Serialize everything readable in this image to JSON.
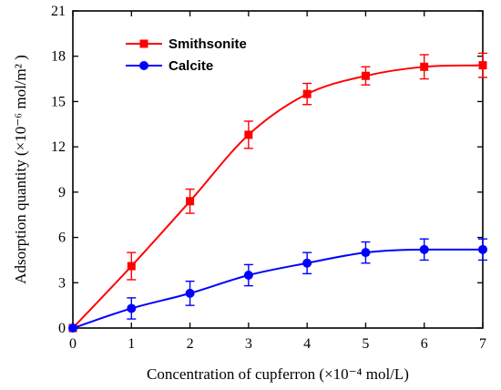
{
  "chart_data": {
    "type": "line",
    "title": "",
    "xlabel": "Concentration of cupferron (×10⁻⁴ mol/L)",
    "ylabel": "Adsorption quantity (×10⁻⁶ mol/m² )",
    "xlim": [
      0,
      7
    ],
    "ylim": [
      0,
      21
    ],
    "x_ticks": [
      0,
      1,
      2,
      3,
      4,
      5,
      6,
      7
    ],
    "y_ticks": [
      0,
      3,
      6,
      9,
      12,
      15,
      18,
      21
    ],
    "grid": false,
    "legend_position": "top-left",
    "series": [
      {
        "name": "Smithsonite",
        "color": "#ff0000",
        "marker": "square",
        "x": [
          0,
          1,
          2,
          3,
          4,
          5,
          6,
          7
        ],
        "y": [
          0,
          4.1,
          8.4,
          12.8,
          15.5,
          16.7,
          17.3,
          17.4
        ],
        "error": [
          0.1,
          0.9,
          0.8,
          0.9,
          0.7,
          0.6,
          0.8,
          0.8
        ]
      },
      {
        "name": "Calcite",
        "color": "#0000ff",
        "marker": "circle",
        "x": [
          0,
          1,
          2,
          3,
          4,
          5,
          6,
          7
        ],
        "y": [
          0,
          1.3,
          2.3,
          3.5,
          4.3,
          5.0,
          5.2,
          5.2
        ],
        "error": [
          0.1,
          0.7,
          0.8,
          0.7,
          0.7,
          0.7,
          0.7,
          0.7
        ]
      }
    ]
  }
}
